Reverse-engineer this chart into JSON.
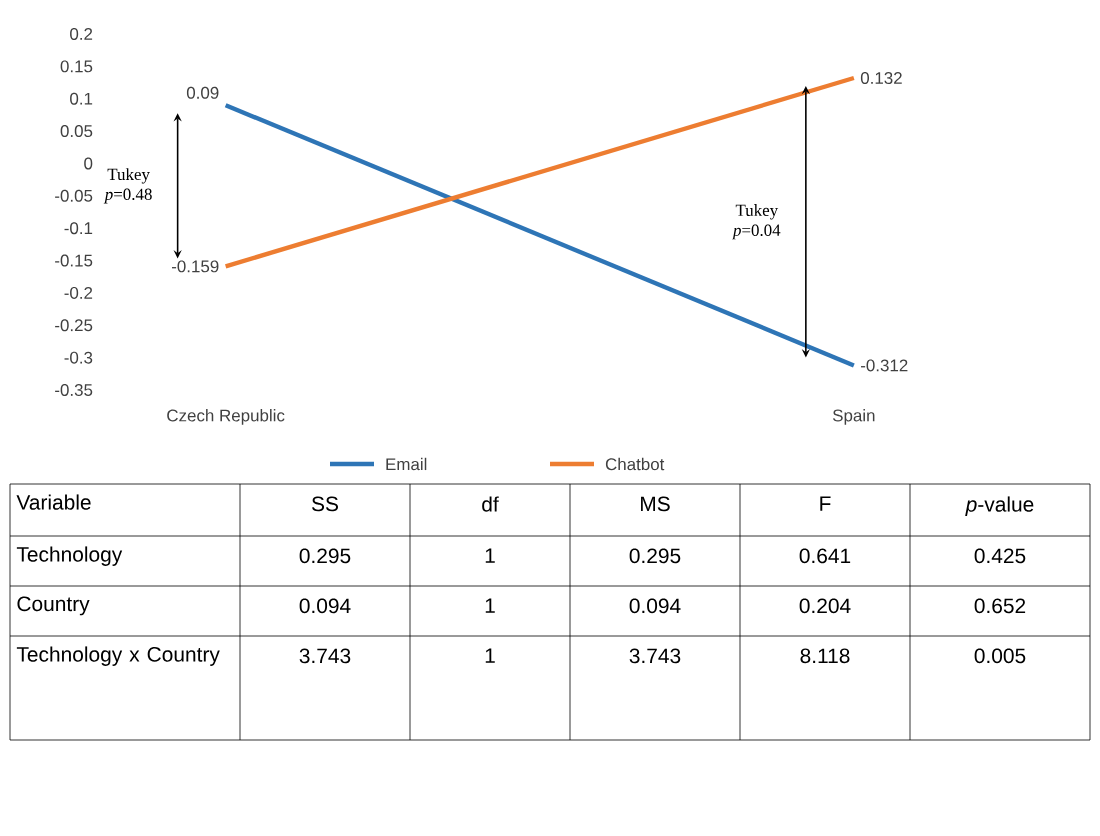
{
  "chart_data": {
    "type": "line",
    "categories": [
      "Czech Republic",
      "Spain"
    ],
    "series": [
      {
        "name": "Email",
        "color": "#2e75b6",
        "values": [
          0.09,
          -0.312
        ]
      },
      {
        "name": "Chatbot",
        "color": "#ed7d31",
        "values": [
          -0.159,
          0.132
        ]
      }
    ],
    "ylim": [
      -0.35,
      0.2
    ],
    "yticks": [
      -0.35,
      -0.3,
      -0.25,
      -0.2,
      -0.15,
      -0.1,
      -0.05,
      0,
      0.05,
      0.1,
      0.15,
      0.2
    ],
    "data_labels": true,
    "legend": "bottom",
    "grid": false,
    "marker": "none",
    "line_style": "solid",
    "annotations": [
      "Tukey *p*=0.48",
      "Tukey *p*=0.04",
      "Variable",
      "SS",
      "df",
      "MS",
      "F",
      "*p*-value",
      "Technology",
      "0.295",
      "1",
      "0.295",
      "0.641",
      "0.425",
      "Country",
      "0.094",
      "1",
      "0.094",
      "0.204",
      "0.652",
      "Technology x Country",
      "3.743",
      "1",
      "3.743",
      "8.118",
      "0.005"
    ]
  }
}
